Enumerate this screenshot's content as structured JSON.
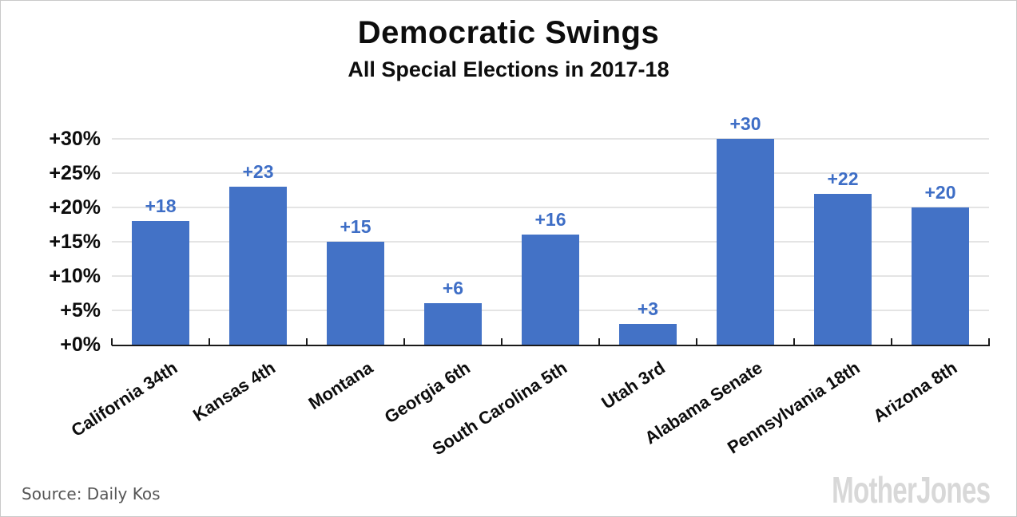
{
  "header": {
    "title": "Democratic Swings",
    "subtitle": "All Special Elections in 2017-18"
  },
  "chart_data": {
    "type": "bar",
    "title": "Democratic Swings",
    "subtitle": "All Special Elections in 2017-18",
    "categories": [
      "California 34th",
      "Kansas 4th",
      "Montana",
      "Georgia 6th",
      "South Carolina 5th",
      "Utah 3rd",
      "Alabama Senate",
      "Pennsylvania 18th",
      "Arizona 8th"
    ],
    "values": [
      18,
      23,
      15,
      6,
      16,
      3,
      30,
      22,
      20
    ],
    "bar_labels": [
      "+18",
      "+23",
      "+15",
      "+6",
      "+16",
      "+3",
      "+30",
      "+22",
      "+20"
    ],
    "y_tick_values": [
      0,
      5,
      10,
      15,
      20,
      25,
      30
    ],
    "y_tick_labels": [
      "+0%",
      "+5%",
      "+10%",
      "+15%",
      "+20%",
      "+25%",
      "+30%"
    ],
    "ylim": [
      0,
      30
    ],
    "xlabel": "",
    "ylabel": "",
    "grid": true,
    "legend_position": "none",
    "colors": {
      "bar": "#4372C6",
      "value_label": "#3E6EC6",
      "gridline": "#e4e4e4",
      "axis": "#1a1a1a",
      "brand_gray": "#d8d8d8"
    }
  },
  "footer": {
    "source": "Source: Daily Kos",
    "brand": "MotherJones"
  }
}
